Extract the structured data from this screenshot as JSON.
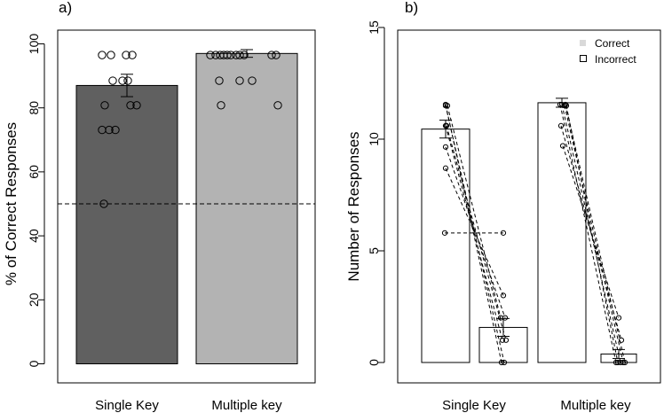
{
  "chart_data": [
    {
      "panel_label": "a)",
      "type": "bar",
      "ylabel": "% of Correct Responses",
      "ylim": [
        0,
        100
      ],
      "yticks": [
        0,
        20,
        40,
        60,
        80,
        100
      ],
      "reference_line": 50,
      "categories": [
        "Single Key",
        "Multiple key"
      ],
      "values": [
        87,
        97
      ],
      "errors": [
        3.5,
        1.2
      ],
      "bar_colors": [
        "#606060",
        "#b3b3b3"
      ],
      "points": [
        [
          96.5,
          96.5,
          96.5,
          96.5,
          88.5,
          88.5,
          88.5,
          80.8,
          80.8,
          80.8,
          73.1,
          73.1,
          73.1,
          50.0
        ],
        [
          96.5,
          96.5,
          96.5,
          96.5,
          96.5,
          96.5,
          96.5,
          96.5,
          96.5,
          96.5,
          96.5,
          88.5,
          88.5,
          88.5,
          80.8,
          80.8
        ]
      ]
    },
    {
      "panel_label": "b)",
      "type": "bar",
      "ylabel": "Number of Responses",
      "ylim": [
        0,
        15
      ],
      "yticks": [
        0,
        5,
        10,
        15
      ],
      "categories": [
        "Single Key",
        "Multiple key"
      ],
      "series": [
        {
          "name": "Correct",
          "values": [
            10.45,
            11.63
          ],
          "errors": [
            0.4,
            0.2
          ]
        },
        {
          "name": "Incorrect",
          "values": [
            1.57,
            0.38
          ],
          "errors": [
            0.4,
            0.2
          ]
        }
      ],
      "legend": [
        "Correct",
        "Incorrect"
      ],
      "legend_position": "top-right",
      "paired_points": [
        [
          [
            11.55,
            0
          ],
          [
            11.5,
            0
          ],
          [
            10.6,
            1
          ],
          [
            9.65,
            2
          ],
          [
            8.7,
            3
          ],
          [
            5.8,
            5.8
          ],
          [
            10.6,
            1
          ],
          [
            11.5,
            2
          ]
        ],
        [
          [
            11.55,
            0
          ],
          [
            11.55,
            0
          ],
          [
            11.5,
            0
          ],
          [
            11.5,
            0
          ],
          [
            10.6,
            1
          ],
          [
            9.7,
            2
          ],
          [
            11.55,
            0
          ]
        ]
      ]
    }
  ]
}
